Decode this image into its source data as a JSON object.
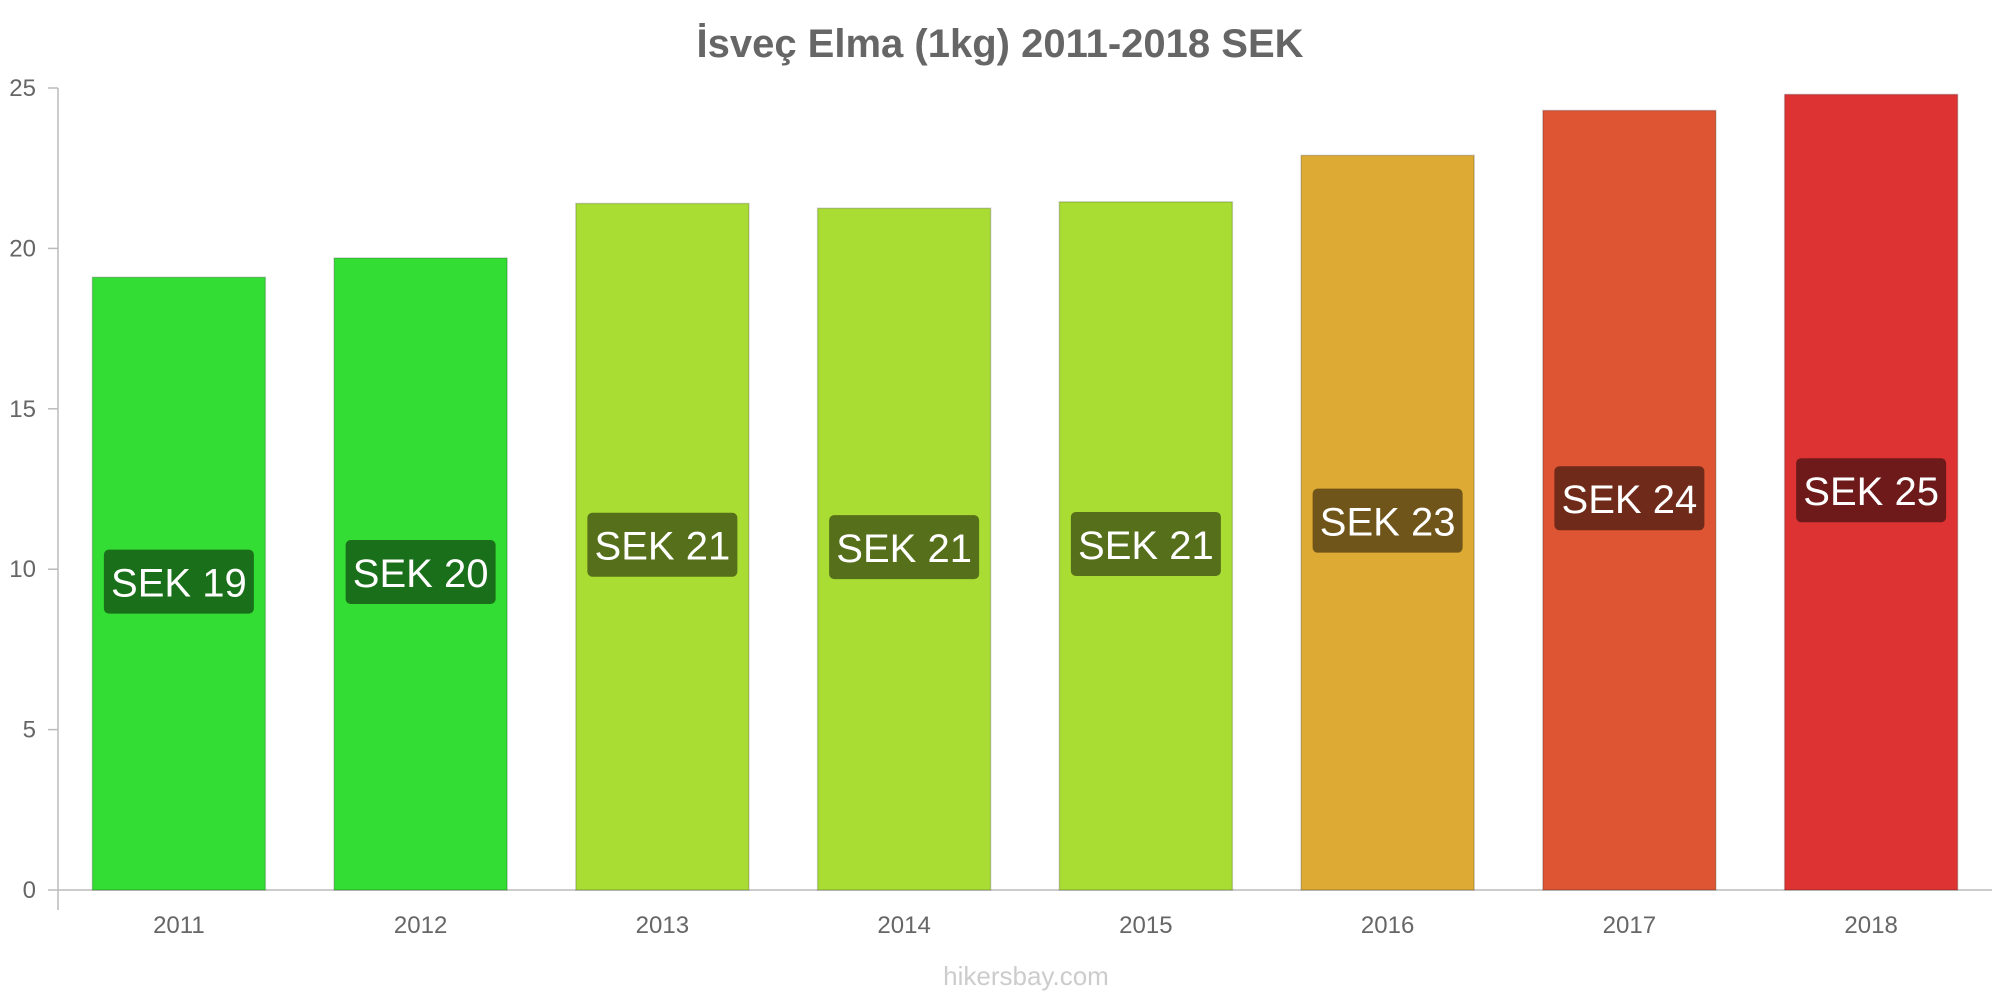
{
  "chart_data": {
    "type": "bar",
    "title": "İsveç Elma (1kg) 2011-2018 SEK",
    "xlabel": "",
    "ylabel": "",
    "categories": [
      "2011",
      "2012",
      "2013",
      "2014",
      "2015",
      "2016",
      "2017",
      "2018"
    ],
    "values": [
      19.1,
      19.7,
      21.4,
      21.25,
      21.45,
      22.9,
      24.3,
      24.8
    ],
    "value_labels": [
      "SEK 19",
      "SEK 20",
      "SEK 21",
      "SEK 21",
      "SEK 21",
      "SEK 23",
      "SEK 24",
      "SEK 25"
    ],
    "bar_colors": [
      "#33dd33",
      "#33dd33",
      "#aadd33",
      "#aadd33",
      "#aadd33",
      "#ddaa33",
      "#dd5533",
      "#dd3333"
    ],
    "label_colors": [
      "#1a6f1a",
      "#1a6f1a",
      "#556f1a",
      "#556f1a",
      "#556f1a",
      "#6f551a",
      "#6f2a1a",
      "#6f1a1a"
    ],
    "ylim": [
      0,
      25
    ],
    "yticks": [
      "0",
      "5",
      "10",
      "15",
      "20",
      "25"
    ],
    "grid": false,
    "legend": "none"
  },
  "footer": {
    "credit": "hikersbay.com"
  }
}
